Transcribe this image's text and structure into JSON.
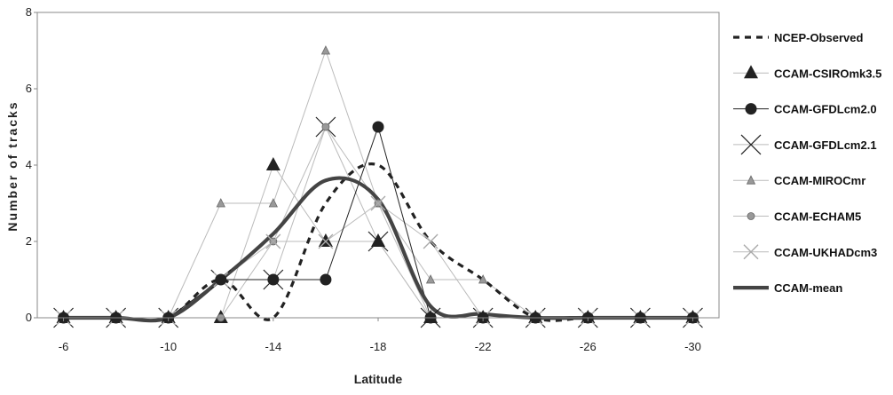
{
  "chart_data": {
    "type": "line",
    "title": "",
    "xlabel": "Latitude",
    "ylabel": "Number of tracks",
    "x": [
      -6,
      -8,
      -10,
      -12,
      -14,
      -16,
      -18,
      -20,
      -22,
      -24,
      -26,
      -28,
      -30
    ],
    "x_tick_labels": [
      "-6",
      "-10",
      "-14",
      "-18",
      "-22",
      "-26",
      "-30"
    ],
    "x_tick_values": [
      -6,
      -10,
      -14,
      -18,
      -22,
      -26,
      -30
    ],
    "y_tick_labels": [
      "0",
      "2",
      "4",
      "6",
      "8"
    ],
    "ylim": [
      0,
      8
    ],
    "grid": false,
    "legend_position": "right",
    "series": [
      {
        "name": "NCEP-Observed",
        "marker": "none",
        "style": "dashed",
        "values": [
          0,
          0,
          0,
          1,
          0,
          3,
          4,
          2,
          1,
          0,
          0,
          0,
          0
        ]
      },
      {
        "name": "CCAM-CSIROmk3.5",
        "marker": "triangle",
        "style": "thin-light",
        "values": [
          0,
          0,
          0,
          0,
          4,
          2,
          2,
          0,
          0,
          0,
          0,
          0,
          0
        ]
      },
      {
        "name": "CCAM-GFDLcm2.0",
        "marker": "circle",
        "style": "thin-dark",
        "values": [
          0,
          0,
          0,
          1,
          1,
          1,
          5,
          0,
          0,
          0,
          0,
          0,
          0
        ]
      },
      {
        "name": "CCAM-GFDLcm2.1",
        "marker": "x",
        "style": "thin-light",
        "values": [
          0,
          0,
          0,
          1,
          1,
          5,
          2,
          0,
          0,
          0,
          0,
          0,
          0
        ]
      },
      {
        "name": "CCAM-MIROCmr",
        "marker": "small-triangle",
        "style": "thin-light",
        "values": [
          0,
          0,
          0,
          3,
          3,
          7,
          3,
          1,
          1,
          0,
          0,
          0,
          0
        ]
      },
      {
        "name": "CCAM-ECHAM5",
        "marker": "small-circle",
        "style": "thin-light",
        "values": [
          0,
          0,
          0,
          0,
          2,
          5,
          3,
          0,
          0,
          0,
          0,
          0,
          0
        ]
      },
      {
        "name": "CCAM-UKHADcm3",
        "marker": "light-x",
        "style": "thin-light",
        "values": [
          0,
          0,
          0,
          1,
          2,
          2,
          3,
          2,
          0,
          0,
          0,
          0,
          0
        ]
      },
      {
        "name": "CCAM-mean",
        "marker": "none",
        "style": "thick",
        "values": [
          0,
          0,
          0,
          1,
          2.2,
          3.6,
          3.1,
          0.3,
          0.1,
          0,
          0,
          0,
          0
        ]
      }
    ],
    "colors": {
      "dark": "#222222",
      "mean": "#444444",
      "light": "#bbbbbb",
      "marker_gray": "#999999"
    }
  }
}
